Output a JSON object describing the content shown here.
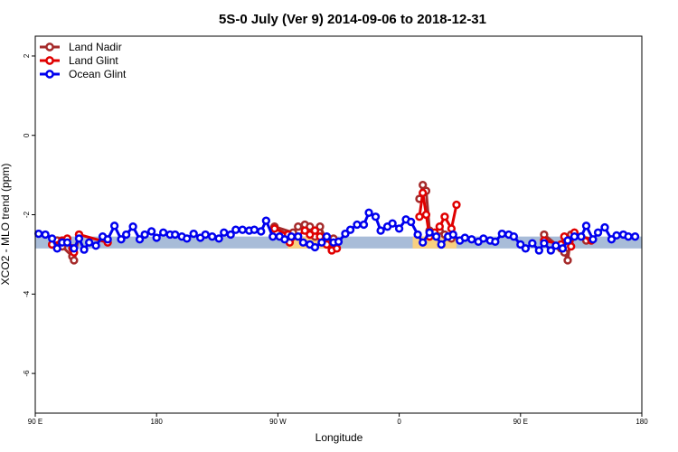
{
  "chart_data": {
    "type": "line",
    "title": "5S-0 July (Ver 9)   2014-09-06 to 2018-12-31",
    "xlabel": "Longitude",
    "ylabel": "XCO2 - MLO trend (ppm)",
    "xlim": [
      90,
      450
    ],
    "ylim": [
      -7.0,
      2.5
    ],
    "x_ticks": [
      {
        "value": 90,
        "label": "90 E"
      },
      {
        "value": 162,
        "label": "180"
      },
      {
        "value": 234,
        "label": "90 W"
      },
      {
        "value": 306,
        "label": "0"
      },
      {
        "value": 378,
        "label": "90 E"
      },
      {
        "value": 450,
        "label": "180"
      }
    ],
    "y_ticks": [
      {
        "value": -6,
        "label": "-6"
      },
      {
        "value": -4,
        "label": "-4"
      },
      {
        "value": -2,
        "label": "-2"
      },
      {
        "value": 0,
        "label": "0"
      },
      {
        "value": 2,
        "label": "2"
      }
    ],
    "bands": [
      {
        "x": [
          90,
          450
        ],
        "y": [
          -2.85,
          -2.55
        ],
        "color": "#a8bcd8"
      },
      {
        "x": [
          240,
          262
        ],
        "y": [
          -2.85,
          -2.55
        ],
        "color": "#f8d080"
      },
      {
        "x": [
          314,
          340
        ],
        "y": [
          -2.85,
          -2.55
        ],
        "color": "#f8d080"
      }
    ],
    "legend": {
      "position": "top-left"
    },
    "series": [
      {
        "name": "Land Nadir",
        "color": "#a52a2a",
        "segments": [
          [
            [
              100,
              -2.75
            ],
            [
              103,
              -2.65
            ],
            [
              106,
              -2.8
            ],
            [
              112,
              -3.05
            ],
            [
              113,
              -3.15
            ],
            [
              116,
              -2.5
            ]
          ],
          [
            [
              232,
              -2.3
            ],
            [
              243,
              -2.45
            ],
            [
              246,
              -2.3
            ],
            [
              250,
              -2.25
            ],
            [
              253,
              -2.3
            ],
            [
              256,
              -2.55
            ],
            [
              259,
              -2.3
            ],
            [
              263,
              -2.65
            ],
            [
              266,
              -2.85
            ],
            [
              267,
              -2.6
            ]
          ],
          [
            [
              318,
              -1.6
            ],
            [
              320,
              -1.25
            ],
            [
              322,
              -1.4
            ],
            [
              324,
              -2.4
            ],
            [
              327,
              -2.5
            ],
            [
              330,
              -2.4
            ],
            [
              333,
              -2.5
            ],
            [
              337,
              -2.6
            ]
          ],
          [
            [
              392,
              -2.5
            ],
            [
              402,
              -2.85
            ],
            [
              404,
              -2.95
            ],
            [
              406,
              -3.15
            ],
            [
              408,
              -2.5
            ],
            [
              417,
              -2.65
            ]
          ]
        ]
      },
      {
        "name": "Land Glint",
        "color": "#e00000",
        "segments": [
          [
            [
              100,
              -2.75
            ],
            [
              106,
              -2.65
            ],
            [
              109,
              -2.6
            ],
            [
              112,
              -2.85
            ],
            [
              113,
              -2.95
            ],
            [
              116,
              -2.5
            ],
            [
              133,
              -2.7
            ]
          ],
          [
            [
              232,
              -2.35
            ],
            [
              240,
              -2.5
            ],
            [
              241,
              -2.7
            ],
            [
              250,
              -2.4
            ],
            [
              253,
              -2.5
            ],
            [
              256,
              -2.4
            ],
            [
              259,
              -2.55
            ],
            [
              263,
              -2.75
            ],
            [
              266,
              -2.9
            ],
            [
              269,
              -2.85
            ]
          ],
          [
            [
              318,
              -2.05
            ],
            [
              320,
              -1.45
            ],
            [
              322,
              -2.0
            ],
            [
              324,
              -2.55
            ],
            [
              327,
              -2.45
            ],
            [
              330,
              -2.3
            ],
            [
              333,
              -2.05
            ],
            [
              337,
              -2.35
            ],
            [
              340,
              -1.75
            ]
          ],
          [
            [
              392,
              -2.65
            ],
            [
              402,
              -2.75
            ],
            [
              404,
              -2.55
            ],
            [
              408,
              -2.8
            ],
            [
              410,
              -2.45
            ],
            [
              420,
              -2.65
            ]
          ]
        ]
      },
      {
        "name": "Ocean Glint",
        "color": "#0000ee",
        "segments": [
          [
            [
              92,
              -2.48
            ],
            [
              96,
              -2.5
            ],
            [
              100,
              -2.6
            ],
            [
              103,
              -2.85
            ],
            [
              106,
              -2.7
            ],
            [
              109,
              -2.7
            ],
            [
              113,
              -2.85
            ],
            [
              116,
              -2.6
            ],
            [
              119,
              -2.88
            ],
            [
              122,
              -2.7
            ],
            [
              126,
              -2.78
            ],
            [
              130,
              -2.55
            ],
            [
              133,
              -2.62
            ],
            [
              137,
              -2.28
            ],
            [
              141,
              -2.62
            ],
            [
              144,
              -2.5
            ],
            [
              148,
              -2.3
            ],
            [
              152,
              -2.62
            ],
            [
              155,
              -2.5
            ],
            [
              159,
              -2.42
            ],
            [
              162,
              -2.58
            ],
            [
              166,
              -2.45
            ],
            [
              170,
              -2.5
            ],
            [
              173,
              -2.5
            ],
            [
              177,
              -2.55
            ],
            [
              180,
              -2.6
            ],
            [
              184,
              -2.48
            ],
            [
              188,
              -2.58
            ],
            [
              191,
              -2.5
            ],
            [
              195,
              -2.55
            ],
            [
              199,
              -2.6
            ],
            [
              202,
              -2.45
            ],
            [
              206,
              -2.5
            ],
            [
              209,
              -2.38
            ],
            [
              213,
              -2.38
            ],
            [
              217,
              -2.4
            ],
            [
              220,
              -2.38
            ],
            [
              224,
              -2.42
            ],
            [
              227,
              -2.15
            ],
            [
              231,
              -2.55
            ],
            [
              235,
              -2.55
            ],
            [
              238,
              -2.62
            ],
            [
              242,
              -2.55
            ],
            [
              246,
              -2.55
            ],
            [
              249,
              -2.7
            ],
            [
              253,
              -2.75
            ],
            [
              256,
              -2.82
            ],
            [
              260,
              -2.7
            ],
            [
              263,
              -2.55
            ],
            [
              267,
              -2.7
            ],
            [
              270,
              -2.68
            ],
            [
              274,
              -2.48
            ],
            [
              277,
              -2.38
            ],
            [
              281,
              -2.25
            ],
            [
              285,
              -2.25
            ],
            [
              288,
              -1.95
            ],
            [
              292,
              -2.05
            ],
            [
              295,
              -2.4
            ],
            [
              299,
              -2.3
            ],
            [
              302,
              -2.22
            ],
            [
              306,
              -2.35
            ],
            [
              310,
              -2.12
            ],
            [
              313,
              -2.18
            ],
            [
              317,
              -2.5
            ],
            [
              320,
              -2.7
            ],
            [
              324,
              -2.45
            ],
            [
              328,
              -2.55
            ],
            [
              331,
              -2.75
            ],
            [
              335,
              -2.55
            ],
            [
              338,
              -2.5
            ],
            [
              342,
              -2.65
            ],
            [
              345,
              -2.58
            ],
            [
              349,
              -2.62
            ],
            [
              353,
              -2.68
            ],
            [
              356,
              -2.6
            ],
            [
              360,
              -2.65
            ],
            [
              363,
              -2.68
            ],
            [
              367,
              -2.48
            ],
            [
              371,
              -2.5
            ],
            [
              374,
              -2.55
            ],
            [
              378,
              -2.75
            ],
            [
              381,
              -2.85
            ],
            [
              385,
              -2.72
            ],
            [
              389,
              -2.9
            ],
            [
              392,
              -2.72
            ],
            [
              396,
              -2.9
            ],
            [
              399,
              -2.78
            ],
            [
              403,
              -2.85
            ],
            [
              406,
              -2.65
            ],
            [
              410,
              -2.55
            ],
            [
              414,
              -2.55
            ],
            [
              417,
              -2.28
            ],
            [
              421,
              -2.62
            ],
            [
              424,
              -2.45
            ],
            [
              428,
              -2.32
            ],
            [
              432,
              -2.62
            ],
            [
              435,
              -2.52
            ],
            [
              439,
              -2.5
            ],
            [
              442,
              -2.55
            ],
            [
              446,
              -2.55
            ]
          ]
        ]
      }
    ]
  }
}
